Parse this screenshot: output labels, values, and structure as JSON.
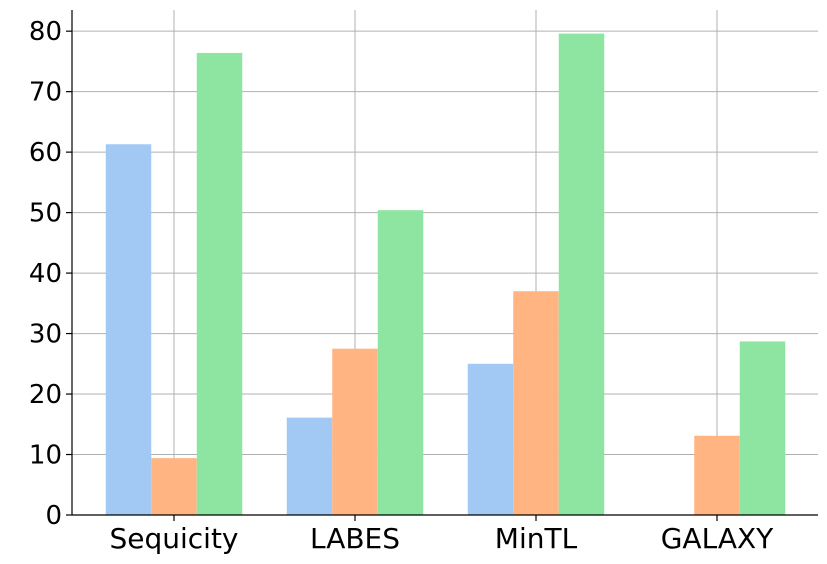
{
  "chart_data": {
    "type": "bar",
    "title": "",
    "xlabel": "",
    "ylabel": "",
    "categories": [
      "Sequicity",
      "LABES",
      "MinTL",
      "GALAXY"
    ],
    "series": [
      {
        "color": "#a1c9f4",
        "values": [
          61.3,
          16.1,
          25.0,
          0
        ]
      },
      {
        "color": "#ffb482",
        "values": [
          9.4,
          27.5,
          37.0,
          13.1
        ]
      },
      {
        "color": "#8de5a1",
        "values": [
          76.4,
          50.4,
          79.6,
          28.7
        ]
      }
    ],
    "ylim": [
      0,
      83.5
    ],
    "yticks": [
      "0",
      "10",
      "20",
      "30",
      "40",
      "50",
      "60",
      "70",
      "80"
    ],
    "grid": true,
    "legend": "none"
  }
}
